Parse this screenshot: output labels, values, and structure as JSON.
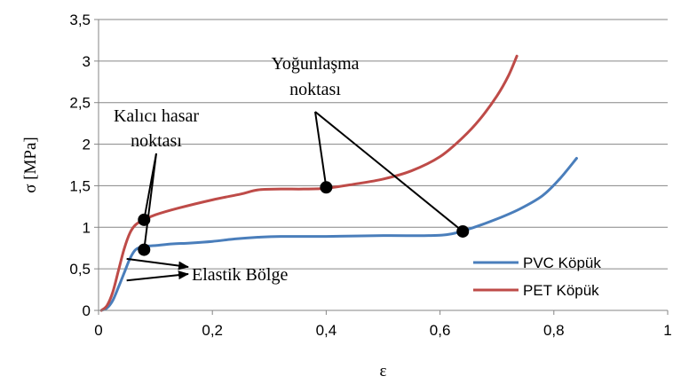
{
  "chart_data": {
    "type": "line",
    "title": "",
    "xlabel": "ε",
    "ylabel": "σ [MPa]",
    "xlim": [
      0,
      1
    ],
    "ylim": [
      0,
      3.5
    ],
    "x_ticks": [
      0,
      0.2,
      0.4,
      0.6,
      0.8,
      1
    ],
    "x_tick_labels": [
      "0",
      "0,2",
      "0,4",
      "0,6",
      "0,8",
      "1"
    ],
    "y_ticks": [
      0,
      0.5,
      1,
      1.5,
      2,
      2.5,
      3,
      3.5
    ],
    "y_tick_labels": [
      "0",
      "0,5",
      "1",
      "1,5",
      "2",
      "2,5",
      "3",
      "3,5"
    ],
    "grid": "horizontal",
    "legend_position": "bottom-right",
    "series": [
      {
        "name": "PVC Köpük",
        "color": "#4a7ebb",
        "points": [
          [
            0.005,
            0.0
          ],
          [
            0.015,
            0.03
          ],
          [
            0.025,
            0.12
          ],
          [
            0.035,
            0.28
          ],
          [
            0.045,
            0.45
          ],
          [
            0.055,
            0.62
          ],
          [
            0.065,
            0.73
          ],
          [
            0.08,
            0.77
          ],
          [
            0.1,
            0.78
          ],
          [
            0.13,
            0.8
          ],
          [
            0.16,
            0.81
          ],
          [
            0.2,
            0.83
          ],
          [
            0.24,
            0.86
          ],
          [
            0.28,
            0.88
          ],
          [
            0.32,
            0.89
          ],
          [
            0.4,
            0.89
          ],
          [
            0.5,
            0.9
          ],
          [
            0.58,
            0.9
          ],
          [
            0.62,
            0.92
          ],
          [
            0.66,
            1.0
          ],
          [
            0.7,
            1.1
          ],
          [
            0.74,
            1.22
          ],
          [
            0.78,
            1.38
          ],
          [
            0.81,
            1.58
          ],
          [
            0.84,
            1.83
          ]
        ]
      },
      {
        "name": "PET Köpük",
        "color": "#be4b48",
        "points": [
          [
            0.005,
            0.0
          ],
          [
            0.015,
            0.06
          ],
          [
            0.025,
            0.22
          ],
          [
            0.035,
            0.48
          ],
          [
            0.045,
            0.74
          ],
          [
            0.055,
            0.93
          ],
          [
            0.065,
            1.03
          ],
          [
            0.08,
            1.09
          ],
          [
            0.1,
            1.15
          ],
          [
            0.14,
            1.23
          ],
          [
            0.2,
            1.33
          ],
          [
            0.25,
            1.4
          ],
          [
            0.28,
            1.45
          ],
          [
            0.32,
            1.46
          ],
          [
            0.36,
            1.46
          ],
          [
            0.4,
            1.47
          ],
          [
            0.45,
            1.52
          ],
          [
            0.5,
            1.58
          ],
          [
            0.55,
            1.68
          ],
          [
            0.6,
            1.85
          ],
          [
            0.64,
            2.08
          ],
          [
            0.67,
            2.3
          ],
          [
            0.7,
            2.58
          ],
          [
            0.72,
            2.82
          ],
          [
            0.735,
            3.06
          ]
        ]
      }
    ],
    "markers": [
      {
        "x": 0.08,
        "y": 1.09
      },
      {
        "x": 0.08,
        "y": 0.73
      },
      {
        "x": 0.4,
        "y": 1.48
      },
      {
        "x": 0.64,
        "y": 0.95
      }
    ],
    "annotations": [
      {
        "text_lines": [
          "Kalıcı hasar",
          "noktası"
        ],
        "arrow_targets": [
          [
            0.08,
            1.09
          ],
          [
            0.08,
            0.73
          ]
        ]
      },
      {
        "text_lines": [
          "Yoğunlaşma",
          "noktası"
        ],
        "arrow_targets": [
          [
            0.4,
            1.48
          ],
          [
            0.64,
            0.95
          ]
        ]
      },
      {
        "text_lines": [
          "Elastik Bölge"
        ],
        "arrow_targets": [
          [
            0.04,
            0.62
          ],
          [
            0.04,
            0.36
          ]
        ]
      }
    ]
  }
}
